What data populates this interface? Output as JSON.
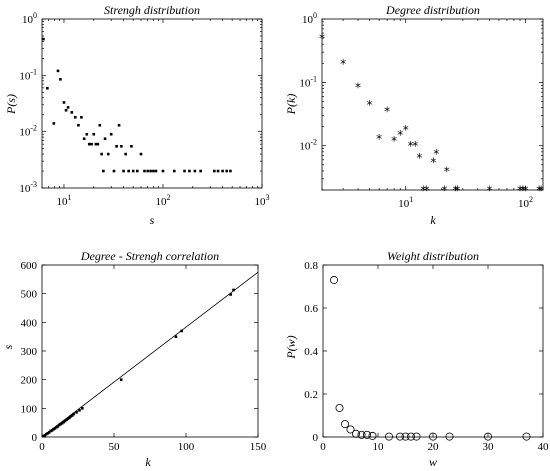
{
  "chart_data": [
    {
      "type": "scatter",
      "title": "Strengh distribution",
      "xlabel": "s",
      "ylabel": "P(s)",
      "xscale": "log",
      "yscale": "log",
      "xlim": [
        6,
        1000
      ],
      "ylim": [
        0.001,
        1
      ],
      "x_tick_labels": [
        {
          "base": "10",
          "exp": "1"
        },
        {
          "base": "10",
          "exp": "2"
        },
        {
          "base": "10",
          "exp": "3"
        }
      ],
      "y_tick_labels": [
        {
          "base": "10",
          "exp": "-3"
        },
        {
          "base": "10",
          "exp": "-2"
        },
        {
          "base": "10",
          "exp": "-1"
        },
        {
          "base": "10",
          "exp": "0"
        }
      ],
      "marker": "dot",
      "series": [
        {
          "x": [
            6.2,
            6.8,
            7.9,
            8.7,
            9.2,
            10,
            10.5,
            11,
            12,
            13,
            14,
            15,
            16,
            17,
            18,
            19,
            20,
            21,
            22,
            23,
            24,
            25,
            26,
            28,
            30,
            32,
            34,
            36,
            38,
            40,
            42,
            45,
            48,
            50,
            55,
            60,
            65,
            70,
            75,
            80,
            85,
            100,
            130,
            165,
            185,
            210,
            240,
            330,
            360,
            400,
            440,
            480
          ],
          "y": [
            0.44,
            0.059,
            0.014,
            0.12,
            0.085,
            0.033,
            0.024,
            0.027,
            0.022,
            0.018,
            0.013,
            0.018,
            0.0075,
            0.009,
            0.006,
            0.006,
            0.009,
            0.006,
            0.006,
            0.013,
            0.004,
            0.002,
            0.0075,
            0.004,
            0.009,
            0.002,
            0.0055,
            0.013,
            0.0055,
            0.002,
            0.004,
            0.002,
            0.0055,
            0.002,
            0.002,
            0.004,
            0.002,
            0.002,
            0.002,
            0.002,
            0.002,
            0.002,
            0.002,
            0.002,
            0.002,
            0.002,
            0.002,
            0.002,
            0.002,
            0.002,
            0.002,
            0.002
          ]
        }
      ]
    },
    {
      "type": "scatter",
      "title": "Degree distribution",
      "xlabel": "k",
      "ylabel": "P(k)",
      "xscale": "log",
      "yscale": "log",
      "xlim": [
        2,
        140
      ],
      "ylim": [
        0.002,
        1
      ],
      "x_tick_labels": [
        {
          "base": "10",
          "exp": "1"
        },
        {
          "base": "10",
          "exp": "2"
        }
      ],
      "y_tick_labels": [
        {
          "base": "10",
          "exp": "-2"
        },
        {
          "base": "10",
          "exp": "-1"
        },
        {
          "base": "10",
          "exp": "0"
        }
      ],
      "marker": "asterisk",
      "series": [
        {
          "x": [
            2,
            3,
            4,
            5,
            6,
            7,
            8,
            9,
            10,
            11,
            12,
            13,
            14,
            15,
            17,
            18,
            21,
            22,
            26,
            27,
            50,
            90,
            95,
            100,
            130,
            135
          ],
          "y": [
            0.5,
            0.2,
            0.085,
            0.045,
            0.013,
            0.035,
            0.012,
            0.015,
            0.018,
            0.01,
            0.01,
            0.0065,
            0.002,
            0.002,
            0.0055,
            0.0075,
            0.002,
            0.004,
            0.002,
            0.002,
            0.002,
            0.002,
            0.002,
            0.002,
            0.002,
            0.002
          ]
        }
      ]
    },
    {
      "type": "scatter",
      "title": "Degree - Strengh correlation",
      "xlabel": "k",
      "ylabel": "s",
      "xlim": [
        0,
        150
      ],
      "ylim": [
        0,
        600
      ],
      "x_ticks": [
        0,
        50,
        100,
        150
      ],
      "y_ticks": [
        0,
        100,
        200,
        300,
        400,
        500,
        600
      ],
      "marker": "dot",
      "series": [
        {
          "x": [
            1,
            2,
            3,
            4,
            5,
            6,
            7,
            8,
            9,
            10,
            11,
            12,
            13,
            14,
            15,
            16,
            17,
            18,
            19,
            20,
            21,
            22,
            24,
            26,
            28,
            55,
            93,
            97,
            131,
            133
          ],
          "y": [
            3,
            6,
            10,
            13,
            16,
            21,
            23,
            27,
            30,
            34,
            37,
            42,
            45,
            48,
            52,
            56,
            60,
            64,
            67,
            72,
            75,
            80,
            86,
            93,
            100,
            200,
            350,
            370,
            497,
            513
          ]
        }
      ],
      "fit_line": {
        "k0": 0,
        "s0": 0,
        "k1": 150,
        "s1": 575
      }
    },
    {
      "type": "scatter",
      "title": "Weight distribution",
      "xlabel": "w",
      "ylabel": "P(w)",
      "xlim": [
        0,
        40
      ],
      "ylim": [
        0,
        0.8
      ],
      "x_ticks": [
        0,
        10,
        20,
        30,
        40
      ],
      "y_ticks": [
        0,
        0.2,
        0.4,
        0.6,
        0.8
      ],
      "marker": "circle",
      "series": [
        {
          "x": [
            2,
            3,
            4,
            5,
            6,
            7,
            8,
            9,
            12,
            14,
            15,
            16,
            17,
            20,
            23,
            30,
            37
          ],
          "y": [
            0.73,
            0.135,
            0.06,
            0.035,
            0.015,
            0.01,
            0.01,
            0.005,
            0.002,
            0.002,
            0.002,
            0.002,
            0.002,
            0.002,
            0.002,
            0.002,
            0.002
          ]
        }
      ]
    }
  ]
}
